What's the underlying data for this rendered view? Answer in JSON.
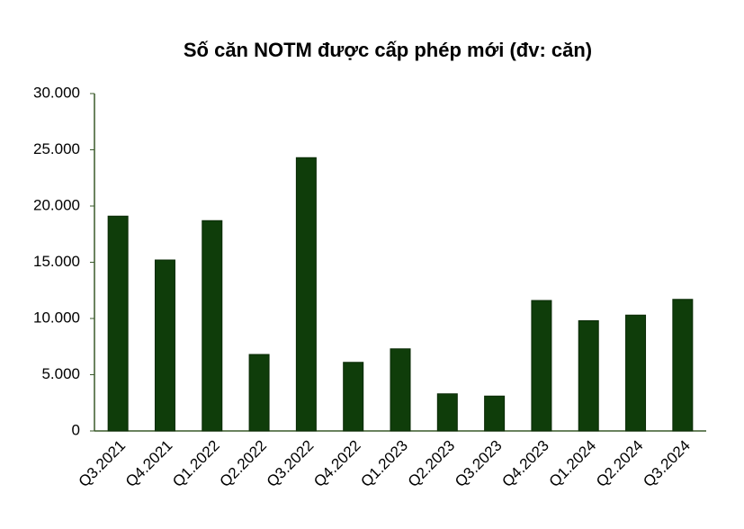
{
  "chart_data": {
    "type": "bar",
    "title": "Số căn NOTM được cấp phép mới (đv: căn)",
    "categories": [
      "Q3.2021",
      "Q4.2021",
      "Q1.2022",
      "Q2.2022",
      "Q3.2022",
      "Q4.2022",
      "Q1.2023",
      "Q2.2023",
      "Q3.2023",
      "Q4.2023",
      "Q1.2024",
      "Q2.2024",
      "Q3.2024"
    ],
    "values": [
      19100,
      15200,
      18700,
      6800,
      24300,
      6100,
      7300,
      3300,
      3100,
      11600,
      9800,
      10300,
      11700
    ],
    "color": "#0f3d0a",
    "ylim": [
      0,
      30000
    ],
    "yticks": [
      0,
      {
        "value": 5000,
        "label": "5.000"
      },
      {
        "value": 10000,
        "label": "10.000"
      },
      {
        "value": 15000,
        "label": "15.000"
      },
      {
        "value": 20000,
        "label": "20.000"
      },
      {
        "value": 25000,
        "label": "25.000"
      },
      {
        "value": 30000,
        "label": "30.000"
      }
    ],
    "grid": false
  }
}
